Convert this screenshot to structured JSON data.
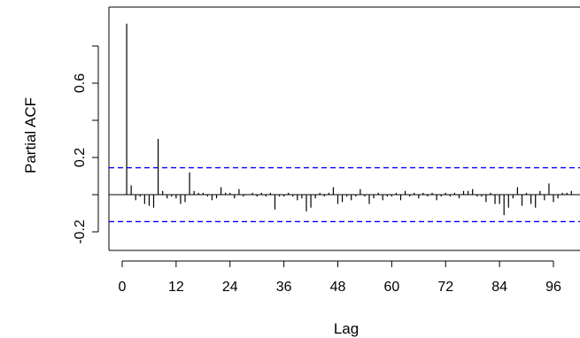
{
  "chart_data": {
    "type": "bar",
    "xlabel": "Lag",
    "ylabel": "Partial ACF",
    "xlim": [
      -3,
      100
    ],
    "ylim": [
      -0.27,
      0.94
    ],
    "x_ticks": [
      0,
      12,
      24,
      36,
      48,
      60,
      72,
      84,
      96
    ],
    "y_ticks": [
      -0.2,
      0.2,
      0.6
    ],
    "y_minor_ticks": [
      -0.2,
      0.0,
      0.2,
      0.4,
      0.6,
      0.8
    ],
    "confidence_bound": 0.145,
    "colors": {
      "bars": "#000000",
      "confidence": "#0000ff",
      "zero_line": "#000000"
    },
    "lags": [
      1,
      2,
      3,
      4,
      5,
      6,
      7,
      8,
      9,
      10,
      11,
      12,
      13,
      14,
      15,
      16,
      17,
      18,
      19,
      20,
      21,
      22,
      23,
      24,
      25,
      26,
      27,
      28,
      29,
      30,
      31,
      32,
      33,
      34,
      35,
      36,
      37,
      38,
      39,
      40,
      41,
      42,
      43,
      44,
      45,
      46,
      47,
      48,
      49,
      50,
      51,
      52,
      53,
      54,
      55,
      56,
      57,
      58,
      59,
      60,
      61,
      62,
      63,
      64,
      65,
      66,
      67,
      68,
      69,
      70,
      71,
      72,
      73,
      74,
      75,
      76,
      77,
      78,
      79,
      80,
      81,
      82,
      83,
      84,
      85,
      86,
      87,
      88,
      89,
      90,
      91,
      92,
      93,
      94,
      95,
      96,
      97,
      98,
      99,
      100
    ],
    "values": [
      0.92,
      0.05,
      -0.03,
      -0.01,
      -0.05,
      -0.06,
      -0.07,
      0.3,
      0.02,
      -0.02,
      -0.01,
      -0.02,
      -0.05,
      -0.04,
      0.12,
      0.02,
      0.01,
      0.01,
      -0.01,
      -0.03,
      -0.02,
      0.04,
      0.01,
      0.01,
      -0.02,
      0.03,
      -0.01,
      0.0,
      0.01,
      -0.01,
      0.01,
      -0.01,
      0.01,
      -0.08,
      -0.01,
      -0.01,
      0.01,
      -0.01,
      -0.03,
      -0.02,
      -0.09,
      -0.07,
      -0.02,
      0.01,
      -0.01,
      0.01,
      0.04,
      -0.05,
      -0.04,
      -0.01,
      -0.03,
      -0.01,
      0.03,
      -0.01,
      -0.05,
      -0.02,
      0.01,
      -0.03,
      -0.01,
      -0.01,
      0.01,
      -0.03,
      0.02,
      -0.01,
      0.01,
      -0.02,
      0.01,
      -0.01,
      0.01,
      -0.03,
      -0.01,
      0.01,
      -0.01,
      0.01,
      -0.02,
      0.02,
      0.02,
      0.03,
      -0.01,
      -0.01,
      -0.04,
      0.01,
      -0.05,
      -0.05,
      -0.11,
      -0.07,
      -0.02,
      0.04,
      -0.06,
      0.01,
      -0.05,
      -0.07,
      0.02,
      -0.03,
      0.06,
      -0.04,
      -0.02,
      0.01,
      0.01,
      0.02
    ]
  }
}
